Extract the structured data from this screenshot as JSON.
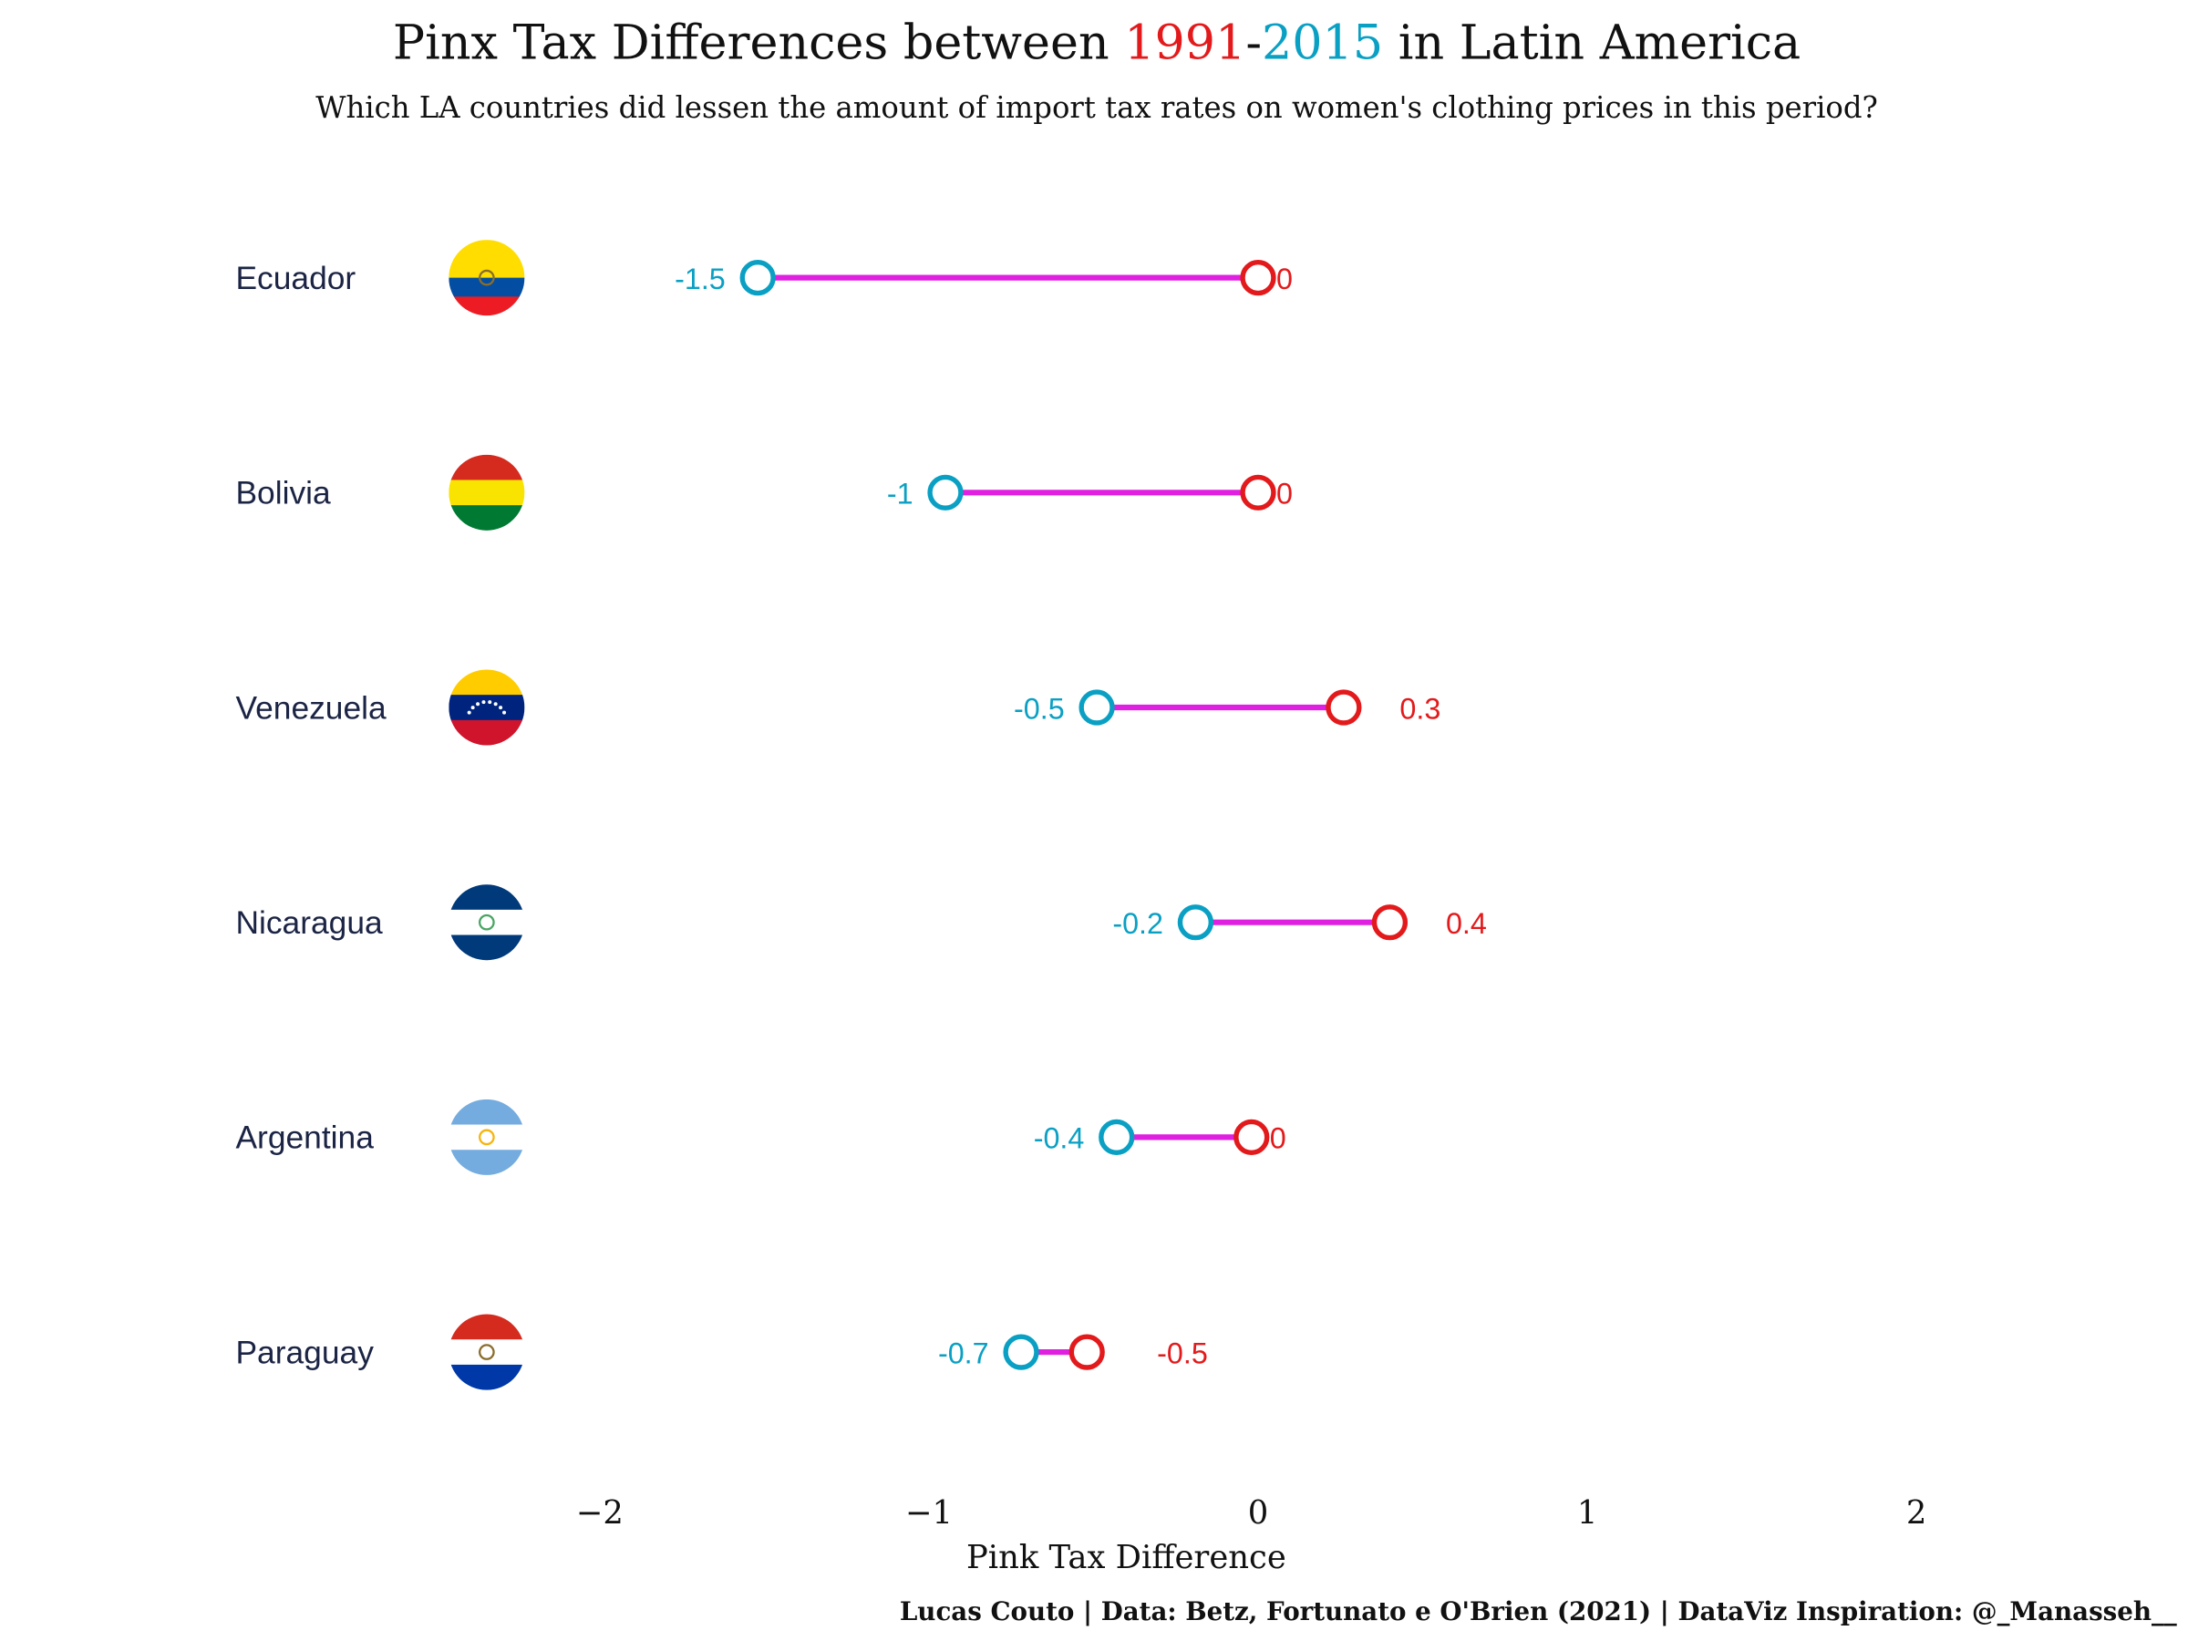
{
  "chart_data": {
    "type": "dumbbell",
    "title_parts": [
      "Pinx Tax Differences between ",
      "1991",
      "-",
      "2015",
      " in Latin America"
    ],
    "subtitle": "Which LA countries did lessen the amount of import tax rates on women's clothing prices in this period?",
    "xlabel": "Pink Tax Difference",
    "xlim": [
      -2.5,
      2.5
    ],
    "xticks": [
      -2,
      -1,
      0,
      1,
      2
    ],
    "xtick_labels": [
      "−2",
      "−1",
      "0",
      "1",
      "2"
    ],
    "grid": false,
    "caption": "Lucas Couto | Data: Betz, Fortunato e O'Brien (2021) | DataViz Inspiration: @_Manasseh__",
    "colors": {
      "y1991": "#e31a1c",
      "y2015": "#0aa0c4",
      "segment": "#e020e0",
      "country_label": "#1b2444"
    },
    "rows": [
      {
        "country": "Ecuador",
        "v1991": 0.0,
        "v2015": -1.52,
        "label1991": "0",
        "label2015": "-1.5",
        "flag": [
          "#ffdd00",
          "#ffdd00",
          "#034ea2",
          "#ed1c24"
        ],
        "flag_icon": "ecuador-flag-icon"
      },
      {
        "country": "Bolivia",
        "v1991": 0.0,
        "v2015": -0.95,
        "label1991": "0",
        "label2015": "-1",
        "flag": [
          "#d52b1e",
          "#f9e300",
          "#007a33"
        ],
        "flag_icon": "bolivia-flag-icon"
      },
      {
        "country": "Venezuela",
        "v1991": 0.26,
        "v2015": -0.49,
        "label1991": "0.3",
        "label2015": "-0.5",
        "flag": [
          "#ffcc00",
          "#00247d",
          "#cf142b"
        ],
        "flag_icon": "venezuela-flag-icon"
      },
      {
        "country": "Nicaragua",
        "v1991": 0.4,
        "v2015": -0.19,
        "label1991": "0.4",
        "label2015": "-0.2",
        "flag": [
          "#003a7a",
          "#ffffff",
          "#003a7a"
        ],
        "flag_icon": "nicaragua-flag-icon"
      },
      {
        "country": "Argentina",
        "v1991": -0.02,
        "v2015": -0.43,
        "label1991": "0",
        "label2015": "-0.4",
        "flag": [
          "#74acdf",
          "#ffffff",
          "#74acdf"
        ],
        "flag_icon": "argentina-flag-icon"
      },
      {
        "country": "Paraguay",
        "v1991": -0.52,
        "v2015": -0.72,
        "label1991": "-0.5",
        "label2015": "-0.7",
        "flag": [
          "#d52b1e",
          "#ffffff",
          "#0038a8"
        ],
        "flag_icon": "paraguay-flag-icon"
      }
    ]
  }
}
